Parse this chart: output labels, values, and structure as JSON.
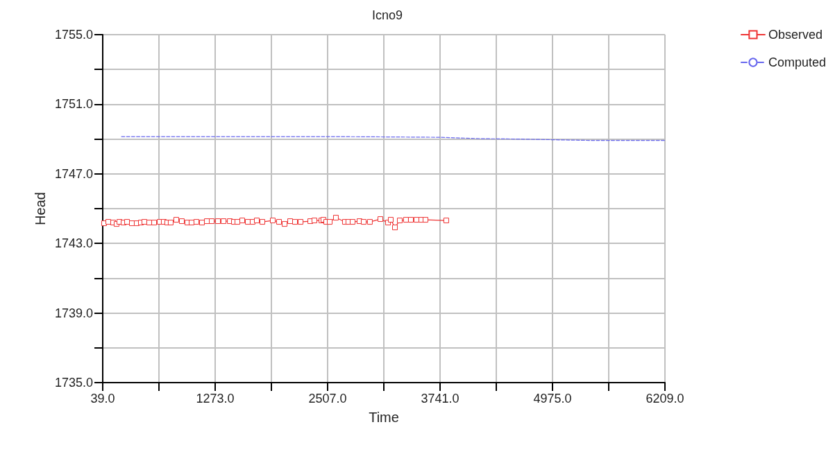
{
  "chart_data": {
    "type": "line",
    "title": "Icno9",
    "xlabel": "Time",
    "ylabel": "Head",
    "xlim": [
      39,
      6209
    ],
    "xticks": [
      {
        "value": 39,
        "label": "39.0"
      },
      {
        "value": 656,
        "label": null
      },
      {
        "value": 1273,
        "label": "1273.0"
      },
      {
        "value": 1890,
        "label": null
      },
      {
        "value": 2507,
        "label": "2507.0"
      },
      {
        "value": 3124,
        "label": null
      },
      {
        "value": 3741,
        "label": "3741.0"
      },
      {
        "value": 4358,
        "label": null
      },
      {
        "value": 4975,
        "label": "4975.0"
      },
      {
        "value": 5592,
        "label": null
      },
      {
        "value": 6209,
        "label": "6209.0"
      }
    ],
    "ylim": [
      1735,
      1755
    ],
    "yticks": [
      {
        "value": 1735,
        "label": "1735.0"
      },
      {
        "value": 1737,
        "label": null
      },
      {
        "value": 1739,
        "label": "1739.0"
      },
      {
        "value": 1741,
        "label": null
      },
      {
        "value": 1743,
        "label": "1743.0"
      },
      {
        "value": 1745,
        "label": null
      },
      {
        "value": 1747,
        "label": "1747.0"
      },
      {
        "value": 1749,
        "label": null
      },
      {
        "value": 1751,
        "label": "1751.0"
      },
      {
        "value": 1753,
        "label": null
      },
      {
        "value": 1755,
        "label": "1755.0"
      }
    ],
    "grid": true,
    "legend": "top right",
    "series": [
      {
        "name": "Observed",
        "color": "#ee3333",
        "marker": "square",
        "line_style": "solid",
        "x": [
          54,
          100,
          153,
          191,
          222,
          268,
          306,
          359,
          412,
          458,
          496,
          549,
          603,
          664,
          709,
          747,
          785,
          846,
          907,
          968,
          1014,
          1067,
          1128,
          1182,
          1235,
          1304,
          1365,
          1434,
          1479,
          1517,
          1570,
          1631,
          1684,
          1730,
          1791,
          1905,
          1974,
          2035,
          2096,
          2149,
          2210,
          2317,
          2362,
          2439,
          2461,
          2492,
          2530,
          2598,
          2697,
          2735,
          2781,
          2857,
          2903,
          2971,
          3086,
          3170,
          3200,
          3246,
          3299,
          3367,
          3421,
          3482,
          3535,
          3581,
          3809
        ],
        "values": [
          1744.16,
          1744.24,
          1744.2,
          1744.12,
          1744.24,
          1744.2,
          1744.24,
          1744.16,
          1744.16,
          1744.2,
          1744.24,
          1744.2,
          1744.2,
          1744.24,
          1744.24,
          1744.2,
          1744.2,
          1744.36,
          1744.28,
          1744.2,
          1744.2,
          1744.24,
          1744.2,
          1744.28,
          1744.28,
          1744.28,
          1744.28,
          1744.28,
          1744.24,
          1744.24,
          1744.32,
          1744.24,
          1744.24,
          1744.32,
          1744.24,
          1744.32,
          1744.24,
          1744.12,
          1744.28,
          1744.24,
          1744.24,
          1744.28,
          1744.32,
          1744.32,
          1744.36,
          1744.24,
          1744.24,
          1744.48,
          1744.24,
          1744.24,
          1744.24,
          1744.28,
          1744.24,
          1744.24,
          1744.4,
          1744.2,
          1744.36,
          1743.92,
          1744.32,
          1744.36,
          1744.36,
          1744.36,
          1744.36,
          1744.36,
          1744.32
        ]
      },
      {
        "name": "Computed",
        "color": "#6666ee",
        "marker": "none",
        "line_style": "dashed",
        "x": [
          245,
          1500,
          2600,
          3200,
          3740,
          4200,
          4600,
          4975,
          5400,
          5800,
          6209
        ],
        "values": [
          1749.14,
          1749.14,
          1749.14,
          1749.12,
          1749.1,
          1749.02,
          1749.0,
          1748.96,
          1748.92,
          1748.92,
          1748.92
        ]
      }
    ]
  }
}
